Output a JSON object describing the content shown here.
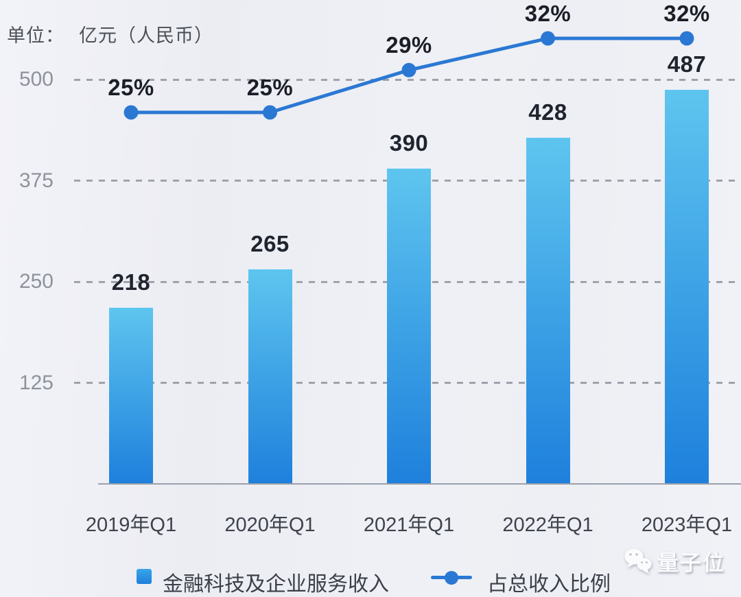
{
  "header": {
    "unit_label": "单位：",
    "unit_value": "亿元（人民币）"
  },
  "chart_data": {
    "type": "bar",
    "categories": [
      "2019年Q1",
      "2020年Q1",
      "2021年Q1",
      "2022年Q1",
      "2023年Q1"
    ],
    "series": [
      {
        "name": "金融科技及企业服务收入",
        "type": "bar",
        "values": [
          218,
          265,
          390,
          428,
          487
        ]
      },
      {
        "name": "占总收入比例",
        "type": "line",
        "values": [
          25,
          25,
          29,
          32,
          32
        ],
        "value_suffix": "%"
      }
    ],
    "title": "",
    "xlabel": "",
    "ylabel": "亿元（人民币）",
    "ylim": [
      0,
      500
    ],
    "yticks": [
      500,
      375,
      250,
      125
    ],
    "grid": "dashed-horizontal",
    "legend_position": "bottom"
  },
  "legend": {
    "bar_label": "金融科技及企业服务收入",
    "line_label": "占总收入比例"
  },
  "watermark": {
    "icon": "wechat-icon",
    "text": "量子位"
  },
  "colors": {
    "background": "#EEF0F5",
    "bar_gradient_top": "#5EC5EF",
    "bar_gradient_bottom": "#1E80DC",
    "line": "#2B78D4",
    "grid": "#9EA2AB",
    "axis": "#9AA0AA",
    "value_label": "#20242E",
    "pct_label": "#1B1E27",
    "tick_label": "#8E929C",
    "x_label": "#3E424C",
    "legend_text": "#3A3F49",
    "legend_square": "#38A5E8"
  }
}
